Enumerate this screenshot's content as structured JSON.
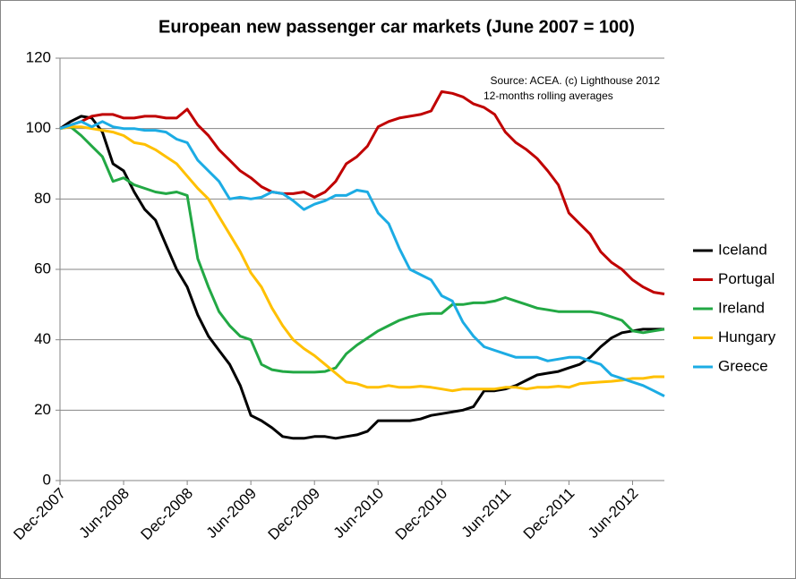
{
  "chart_data": {
    "type": "line",
    "title": "European new passenger car markets (June 2007 = 100)",
    "annotations": [
      "Source: ACEA. (c) Lighthouse 2012",
      "12-months rolling averages"
    ],
    "categories": [
      "Dec-2007",
      null,
      null,
      null,
      null,
      null,
      "Jun-2008",
      null,
      null,
      null,
      null,
      null,
      "Dec-2008",
      null,
      null,
      null,
      null,
      null,
      "Jun-2009",
      null,
      null,
      null,
      null,
      null,
      "Dec-2009",
      null,
      null,
      null,
      null,
      null,
      "Jun-2010",
      null,
      null,
      null,
      null,
      null,
      "Dec-2010",
      null,
      null,
      null,
      null,
      null,
      "Jun-2011",
      null,
      null,
      null,
      null,
      null,
      "Dec-2011",
      null,
      null,
      null,
      null,
      null,
      "Jun-2012",
      null,
      null,
      null
    ],
    "series": [
      {
        "name": "Iceland",
        "color": "#000000",
        "values": [
          100,
          102,
          103.5,
          103,
          99,
          90,
          88,
          82,
          77,
          74,
          67,
          60,
          55,
          47,
          41,
          37,
          33,
          27,
          18.5,
          17,
          15,
          12.5,
          12,
          12,
          12.5,
          12.5,
          12,
          12.5,
          13,
          14,
          17,
          17,
          17,
          17,
          17.5,
          18.5,
          19,
          19.5,
          20,
          21,
          25.5,
          25.5,
          26,
          27,
          28.5,
          30,
          30.5,
          31,
          32,
          33,
          35,
          38,
          40.5,
          42,
          42.5,
          43,
          43,
          43
        ]
      },
      {
        "name": "Portugal",
        "color": "#c00000",
        "values": [
          100,
          101,
          102,
          103.5,
          104,
          104,
          103,
          103,
          103.5,
          103.5,
          103,
          103,
          105.5,
          101,
          98,
          94,
          91,
          88,
          86,
          83.5,
          82,
          81.5,
          81.5,
          82,
          80.5,
          82,
          85,
          90,
          92,
          95,
          100.5,
          102,
          103,
          103.5,
          104,
          105,
          110.5,
          110,
          109,
          107,
          106,
          104,
          99,
          96,
          94,
          91.5,
          88,
          84,
          76,
          73,
          70,
          65,
          62,
          60,
          57,
          55,
          53.5,
          53
        ]
      },
      {
        "name": "Ireland",
        "color": "#22a844",
        "values": [
          100,
          100.5,
          98,
          95,
          92,
          85,
          86,
          84,
          83,
          82,
          81.5,
          82,
          81,
          63,
          55,
          48,
          44,
          41,
          40,
          33,
          31.5,
          31,
          30.8,
          30.8,
          30.8,
          31,
          32,
          36,
          38.5,
          40.5,
          42.5,
          44,
          45.5,
          46.5,
          47.2,
          47.5,
          47.5,
          50,
          50,
          50.5,
          50.5,
          51,
          52,
          51,
          50,
          49,
          48.5,
          48,
          48,
          48,
          48,
          47.5,
          46.5,
          45.5,
          42.5,
          42,
          42.5,
          43
        ]
      },
      {
        "name": "Hungary",
        "color": "#ffc000",
        "values": [
          100,
          100.5,
          100.5,
          100,
          99.5,
          99,
          98,
          96,
          95.5,
          94,
          92,
          90,
          86.5,
          83,
          80,
          75,
          70,
          65,
          59,
          55,
          49,
          44,
          40,
          37.5,
          35.5,
          33,
          30.5,
          28,
          27.5,
          26.5,
          26.5,
          27,
          26.5,
          26.5,
          26.8,
          26.5,
          26,
          25.5,
          26,
          26,
          26,
          26,
          26.5,
          26.5,
          26,
          26.5,
          26.5,
          26.8,
          26.5,
          27.5,
          27.8,
          28,
          28.2,
          28.5,
          29,
          29,
          29.5,
          29.5
        ]
      },
      {
        "name": "Greece",
        "color": "#1cace4",
        "values": [
          100,
          101,
          102,
          100.5,
          102,
          100.5,
          100,
          100,
          99.5,
          99.5,
          99,
          97,
          96,
          91,
          88,
          85,
          80,
          80.5,
          80,
          80.5,
          82,
          81.5,
          79.5,
          77,
          78.5,
          79.5,
          81,
          81,
          82.5,
          82,
          76,
          73,
          66,
          60,
          58.5,
          57,
          52.5,
          51,
          45,
          41,
          38,
          37,
          36,
          35,
          35,
          35,
          34,
          34.5,
          35,
          35,
          34,
          33,
          30,
          29,
          28,
          27,
          25.5,
          24
        ]
      }
    ],
    "ylim": [
      0,
      120
    ],
    "yticks": [
      0,
      20,
      40,
      60,
      80,
      100,
      120
    ],
    "grid": true,
    "legend": "right"
  }
}
